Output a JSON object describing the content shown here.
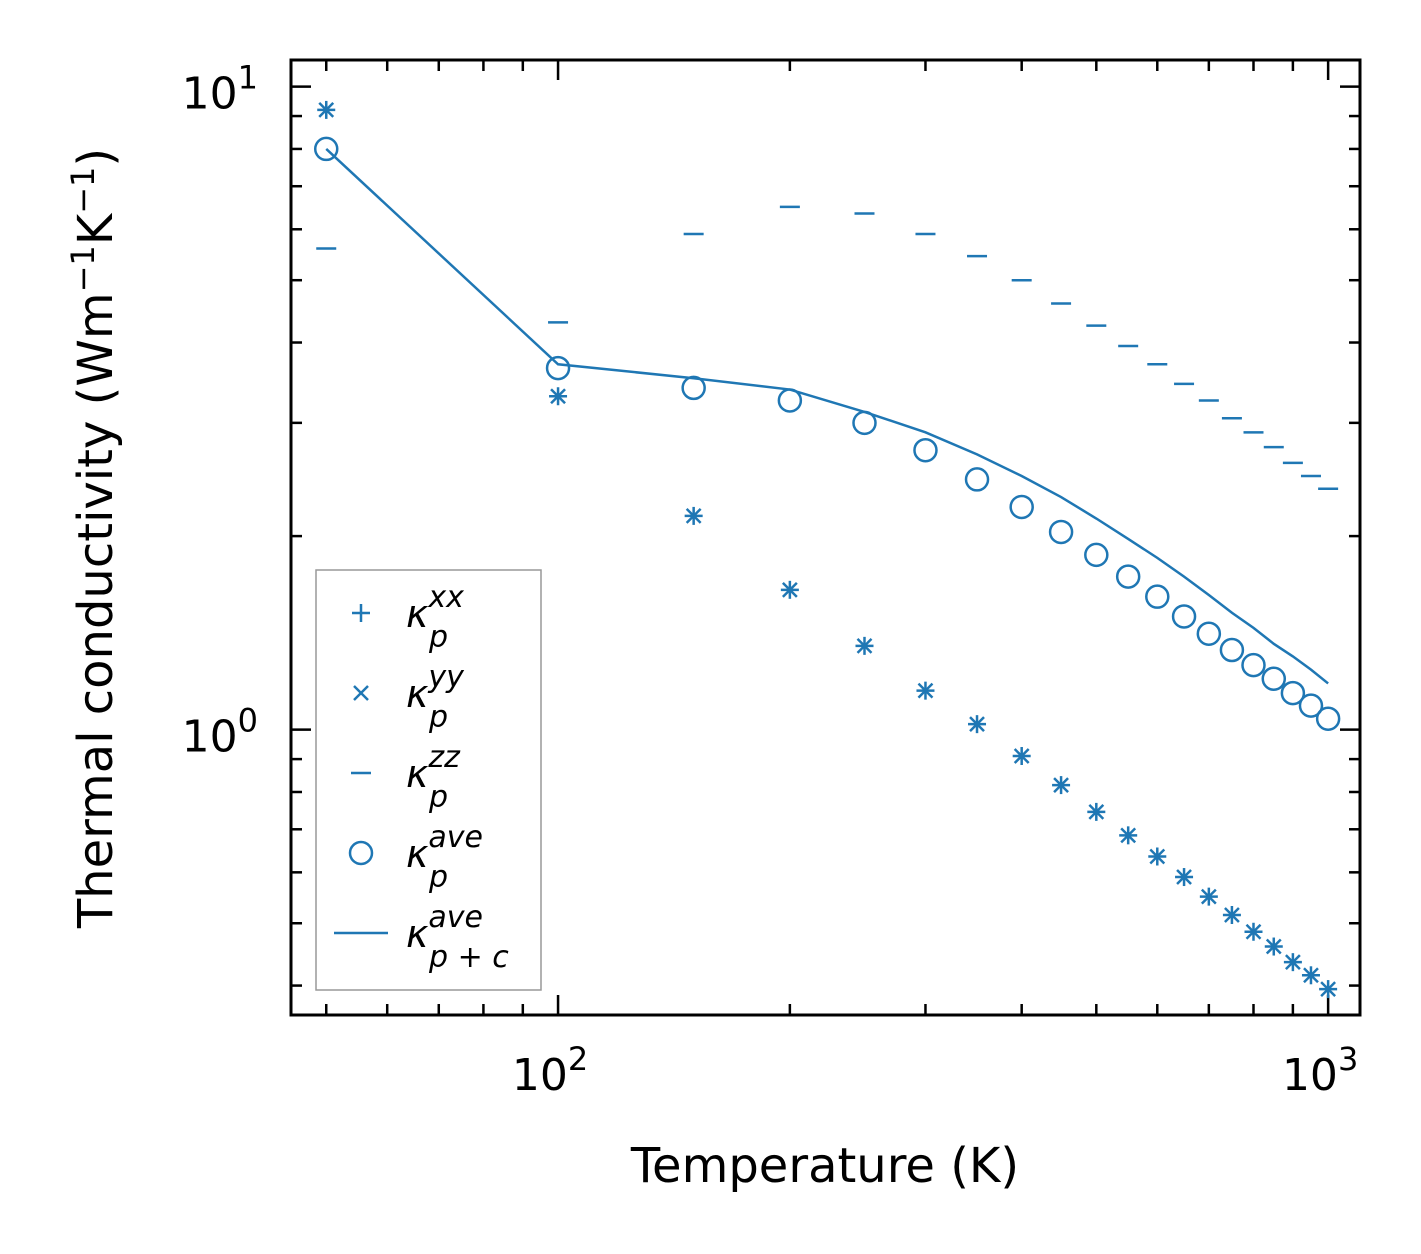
{
  "chart_data": {
    "type": "scatter",
    "xscale": "log",
    "yscale": "log",
    "xlim": [
      45,
      1100
    ],
    "ylim": [
      0.36,
      11
    ],
    "xlabel": "Temperature (K)",
    "ylabel_text": "Thermal conductivity (Wm",
    "ylabel_exp1": "−1",
    "ylabel_mid": "K",
    "ylabel_exp2": "−1",
    "ylabel_close": ")",
    "xticks": [
      {
        "base": "10",
        "exp": "2",
        "value": 100
      },
      {
        "base": "10",
        "exp": "3",
        "value": 1000
      }
    ],
    "yticks": [
      {
        "base": "10",
        "exp": "0",
        "value": 1
      },
      {
        "base": "10",
        "exp": "1",
        "value": 10
      }
    ],
    "color": "#1f77b4",
    "series": [
      {
        "name": "kappa_p_xx",
        "marker": "plus",
        "x": [
          50,
          100,
          150,
          200,
          250,
          300,
          350,
          400,
          450,
          500,
          550,
          600,
          650,
          700,
          750,
          800,
          850,
          900,
          950,
          1000
        ],
        "y": [
          9.2,
          3.3,
          2.15,
          1.65,
          1.35,
          1.15,
          1.02,
          0.91,
          0.82,
          0.745,
          0.685,
          0.635,
          0.59,
          0.55,
          0.515,
          0.485,
          0.46,
          0.435,
          0.415,
          0.395
        ]
      },
      {
        "name": "kappa_p_yy",
        "marker": "x",
        "x": [
          50,
          100,
          150,
          200,
          250,
          300,
          350,
          400,
          450,
          500,
          550,
          600,
          650,
          700,
          750,
          800,
          850,
          900,
          950,
          1000
        ],
        "y": [
          9.2,
          3.3,
          2.15,
          1.65,
          1.35,
          1.15,
          1.02,
          0.91,
          0.82,
          0.745,
          0.685,
          0.635,
          0.59,
          0.55,
          0.515,
          0.485,
          0.46,
          0.435,
          0.415,
          0.395
        ]
      },
      {
        "name": "kappa_p_zz",
        "marker": "hline",
        "x": [
          50,
          100,
          150,
          200,
          250,
          300,
          350,
          400,
          450,
          500,
          550,
          600,
          650,
          700,
          750,
          800,
          850,
          900,
          950,
          1000
        ],
        "y": [
          5.6,
          4.3,
          5.9,
          6.5,
          6.35,
          5.9,
          5.45,
          5.0,
          4.6,
          4.25,
          3.95,
          3.7,
          3.45,
          3.25,
          3.05,
          2.9,
          2.75,
          2.6,
          2.48,
          2.37
        ]
      },
      {
        "name": "kappa_p_ave",
        "marker": "circle",
        "x": [
          50,
          100,
          150,
          200,
          250,
          300,
          350,
          400,
          450,
          500,
          550,
          600,
          650,
          700,
          750,
          800,
          850,
          900,
          950,
          1000
        ],
        "y": [
          8.0,
          3.65,
          3.4,
          3.25,
          3.0,
          2.72,
          2.45,
          2.22,
          2.03,
          1.87,
          1.73,
          1.61,
          1.5,
          1.41,
          1.33,
          1.26,
          1.2,
          1.14,
          1.09,
          1.04
        ]
      },
      {
        "name": "kappa_p+c_ave",
        "marker": "line",
        "x": [
          50,
          100,
          150,
          200,
          250,
          300,
          350,
          400,
          450,
          500,
          550,
          600,
          650,
          700,
          750,
          800,
          850,
          900,
          950,
          1000
        ],
        "y": [
          8.0,
          3.7,
          3.52,
          3.38,
          3.12,
          2.9,
          2.68,
          2.48,
          2.3,
          2.13,
          1.98,
          1.85,
          1.73,
          1.62,
          1.52,
          1.44,
          1.36,
          1.3,
          1.24,
          1.18
        ]
      }
    ],
    "legend": {
      "position": "lower-left",
      "entries": [
        {
          "symbol": "κ",
          "sub": "p",
          "sup": "xx",
          "marker": "plus"
        },
        {
          "symbol": "κ",
          "sub": "p",
          "sup": "yy",
          "marker": "x"
        },
        {
          "symbol": "κ",
          "sub": "p",
          "sup": "zz",
          "marker": "hline"
        },
        {
          "symbol": "κ",
          "sub": "p",
          "sup": "ave",
          "marker": "circle"
        },
        {
          "symbol": "κ",
          "sub": "p + c",
          "sup": "ave",
          "marker": "line"
        }
      ]
    }
  }
}
